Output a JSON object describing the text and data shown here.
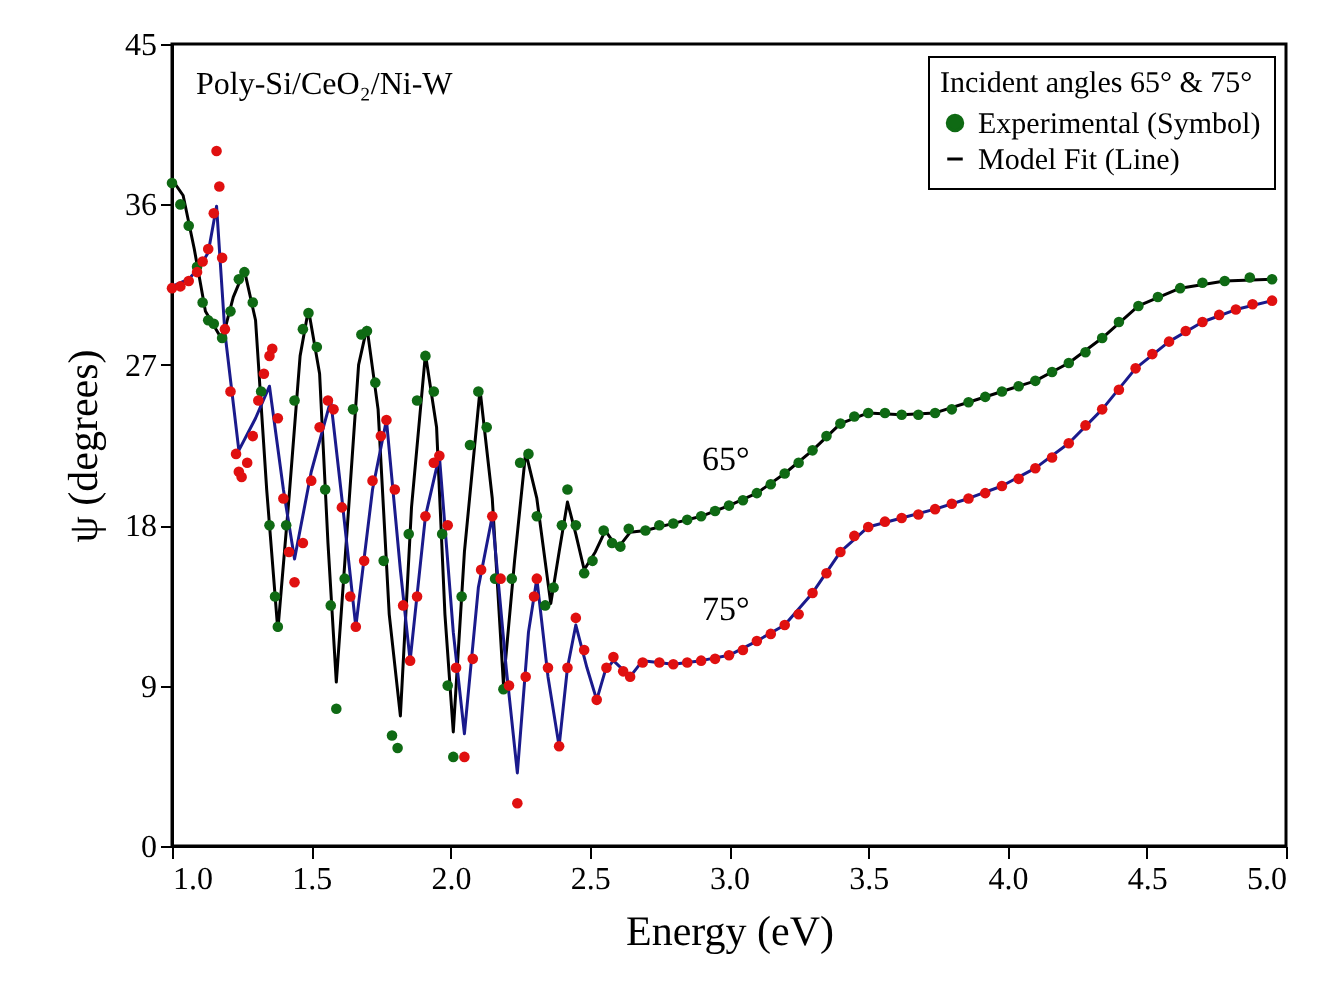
{
  "chart_data": {
    "type": "line",
    "xlabel": "Energy (eV)",
    "ylabel": "ψ (degrees)",
    "legend_title": "Incident angles 65° & 75°",
    "xlim": [
      1.0,
      5.0
    ],
    "ylim": [
      0,
      45
    ],
    "xticks": [
      {
        "value": 1,
        "label": "1.0"
      },
      1.5,
      {
        "value": 2,
        "label": "2.0"
      },
      2.5,
      {
        "value": 3,
        "label": "3.0"
      },
      3.5,
      {
        "value": 4,
        "label": "4.0"
      },
      4.5,
      {
        "value": 5,
        "label": "5.0"
      }
    ],
    "yticks": [
      0,
      9,
      18,
      27,
      36,
      45
    ],
    "grid": false,
    "legend": "top right",
    "annotations": [
      "Poly-Si/CeO₂/Ni-W",
      "65°",
      "75°"
    ],
    "series": [
      {
        "name": "Experimental (Symbol)",
        "type": "scatter",
        "color": "#0f6a14",
        "x": [
          1.0,
          1.03,
          1.06,
          1.09,
          1.11,
          1.13,
          1.15,
          1.18,
          1.21,
          1.24,
          1.26,
          1.29,
          1.32,
          1.35,
          1.37,
          1.38,
          1.41,
          1.44,
          1.47,
          1.49,
          1.52,
          1.55,
          1.57,
          1.59,
          1.62,
          1.65,
          1.68,
          1.7,
          1.73,
          1.76,
          1.79,
          1.81,
          1.85,
          1.88,
          1.91,
          1.94,
          1.97,
          1.99,
          2.01,
          2.04,
          2.07,
          2.1,
          2.13,
          2.16,
          2.19,
          2.22,
          2.25,
          2.28,
          2.31,
          2.34,
          2.37,
          2.4,
          2.42,
          2.45,
          2.48,
          2.51,
          2.55,
          2.58,
          2.61,
          2.64,
          2.7,
          2.75,
          2.8,
          2.85,
          2.9,
          2.95,
          3.0,
          3.05,
          3.1,
          3.15,
          3.2,
          3.25,
          3.3,
          3.35,
          3.4,
          3.45,
          3.5,
          3.56,
          3.62,
          3.68,
          3.74,
          3.8,
          3.86,
          3.92,
          3.98,
          4.04,
          4.1,
          4.16,
          4.22,
          4.28,
          4.34,
          4.4,
          4.47,
          4.54,
          4.62,
          4.7,
          4.78,
          4.87,
          4.95
        ],
        "values": [
          37.2,
          36.0,
          34.8,
          32.5,
          30.5,
          29.5,
          29.3,
          28.5,
          30.0,
          31.8,
          32.2,
          30.5,
          25.5,
          18.0,
          14.0,
          12.3,
          18.0,
          25.0,
          29.0,
          29.9,
          28.0,
          20.0,
          13.5,
          7.7,
          15.0,
          24.5,
          28.7,
          28.9,
          26.0,
          16.0,
          6.2,
          5.5,
          17.5,
          25.0,
          27.5,
          25.5,
          17.5,
          9.0,
          5.0,
          14.0,
          22.5,
          25.5,
          23.5,
          15.0,
          8.8,
          15.0,
          21.5,
          22.0,
          18.5,
          13.5,
          14.5,
          18.0,
          20.0,
          18.0,
          15.3,
          16.0,
          17.7,
          17.0,
          16.8,
          17.8,
          17.7,
          18.0,
          18.1,
          18.3,
          18.5,
          18.8,
          19.1,
          19.4,
          19.8,
          20.3,
          20.9,
          21.5,
          22.2,
          23.0,
          23.7,
          24.1,
          24.3,
          24.3,
          24.2,
          24.2,
          24.3,
          24.5,
          24.9,
          25.2,
          25.5,
          25.8,
          26.1,
          26.6,
          27.1,
          27.7,
          28.5,
          29.4,
          30.3,
          30.8,
          31.3,
          31.6,
          31.7,
          31.9,
          31.8
        ]
      },
      {
        "name": "Model Fit (Line)",
        "type": "line",
        "color": "#000000",
        "x": [
          1.0,
          1.04,
          1.08,
          1.12,
          1.18,
          1.22,
          1.26,
          1.3,
          1.34,
          1.38,
          1.42,
          1.46,
          1.49,
          1.53,
          1.56,
          1.59,
          1.63,
          1.67,
          1.7,
          1.74,
          1.78,
          1.82,
          1.86,
          1.91,
          1.95,
          1.98,
          2.01,
          2.05,
          2.106,
          2.15,
          2.19,
          2.23,
          2.27,
          2.31,
          2.36,
          2.39,
          2.42,
          2.45,
          2.48,
          2.52,
          2.556,
          2.6,
          2.645,
          2.7,
          2.8,
          2.9,
          3.0,
          3.1,
          3.2,
          3.3,
          3.4,
          3.5,
          3.62,
          3.74,
          3.86,
          3.98,
          4.1,
          4.22,
          4.34,
          4.47,
          4.62,
          4.78,
          4.95
        ],
        "values": [
          37.4,
          36.5,
          33.5,
          30.0,
          28.4,
          30.8,
          32.3,
          29.5,
          20.0,
          12.1,
          19.5,
          27.5,
          30.1,
          26.5,
          17.0,
          9.2,
          18.0,
          27.0,
          29.1,
          24.5,
          13.0,
          7.3,
          19.0,
          27.6,
          23.5,
          13.0,
          6.4,
          16.5,
          25.6,
          19.5,
          9.1,
          16.0,
          22.1,
          19.5,
          13.6,
          16.5,
          19.3,
          17.5,
          15.5,
          16.5,
          17.7,
          16.7,
          17.6,
          17.7,
          18.1,
          18.5,
          19.1,
          19.8,
          20.9,
          22.2,
          23.7,
          24.3,
          24.2,
          24.3,
          24.9,
          25.5,
          26.1,
          27.1,
          28.5,
          30.3,
          31.3,
          31.7,
          31.8
        ]
      },
      {
        "type": "scatter",
        "color": "#e01010",
        "x": [
          1.0,
          1.03,
          1.06,
          1.09,
          1.11,
          1.13,
          1.15,
          1.16,
          1.17,
          1.18,
          1.19,
          1.21,
          1.23,
          1.24,
          1.25,
          1.27,
          1.29,
          1.31,
          1.33,
          1.35,
          1.36,
          1.38,
          1.4,
          1.42,
          1.44,
          1.47,
          1.5,
          1.53,
          1.56,
          1.58,
          1.61,
          1.64,
          1.66,
          1.69,
          1.72,
          1.75,
          1.77,
          1.8,
          1.83,
          1.855,
          1.88,
          1.91,
          1.94,
          1.96,
          1.99,
          2.02,
          2.05,
          2.08,
          2.11,
          2.15,
          2.18,
          2.21,
          2.24,
          2.27,
          2.3,
          2.31,
          2.35,
          2.39,
          2.42,
          2.45,
          2.48,
          2.525,
          2.56,
          2.585,
          2.62,
          2.645,
          2.69,
          2.75,
          2.8,
          2.85,
          2.9,
          2.95,
          3.0,
          3.05,
          3.1,
          3.15,
          3.2,
          3.25,
          3.3,
          3.35,
          3.4,
          3.45,
          3.5,
          3.56,
          3.62,
          3.68,
          3.74,
          3.8,
          3.86,
          3.92,
          3.98,
          4.04,
          4.1,
          4.16,
          4.22,
          4.28,
          4.34,
          4.4,
          4.46,
          4.52,
          4.58,
          4.64,
          4.7,
          4.76,
          4.82,
          4.88,
          4.95
        ],
        "values": [
          31.3,
          31.4,
          31.7,
          32.2,
          32.8,
          33.5,
          35.5,
          39.0,
          37.0,
          33.0,
          29.0,
          25.5,
          22.0,
          21.0,
          20.7,
          21.5,
          23.0,
          25.0,
          26.5,
          27.5,
          27.9,
          24.0,
          19.5,
          16.5,
          14.8,
          17.0,
          20.5,
          23.5,
          25.0,
          24.5,
          19.0,
          14.0,
          12.3,
          16.0,
          20.5,
          23.0,
          23.9,
          20.0,
          13.5,
          10.4,
          14.0,
          18.5,
          21.5,
          21.9,
          18.0,
          10.0,
          5.0,
          10.5,
          15.5,
          18.5,
          15.0,
          9.0,
          2.4,
          9.5,
          14.0,
          15.0,
          10.0,
          5.6,
          10.0,
          12.8,
          11.0,
          8.2,
          10.0,
          10.6,
          9.8,
          9.5,
          10.3,
          10.3,
          10.2,
          10.3,
          10.4,
          10.5,
          10.7,
          11.0,
          11.5,
          11.9,
          12.4,
          13.0,
          14.2,
          15.3,
          16.5,
          17.4,
          17.9,
          18.2,
          18.4,
          18.6,
          18.9,
          19.2,
          19.5,
          19.8,
          20.2,
          20.6,
          21.2,
          21.8,
          22.6,
          23.6,
          24.5,
          25.6,
          26.8,
          27.6,
          28.3,
          28.9,
          29.4,
          29.8,
          30.1,
          30.4,
          30.6
        ]
      },
      {
        "type": "line",
        "color": "#1a1a8c",
        "x": [
          1.0,
          1.06,
          1.1,
          1.13,
          1.16,
          1.19,
          1.24,
          1.3,
          1.35,
          1.4,
          1.44,
          1.5,
          1.57,
          1.61,
          1.66,
          1.72,
          1.77,
          1.82,
          1.855,
          1.91,
          1.96,
          2.01,
          2.05,
          2.1,
          2.15,
          2.2,
          2.24,
          2.28,
          2.31,
          2.35,
          2.39,
          2.42,
          2.45,
          2.49,
          2.525,
          2.555,
          2.585,
          2.645,
          2.69,
          2.8,
          2.9,
          3.0,
          3.1,
          3.2,
          3.3,
          3.4,
          3.5,
          3.62,
          3.74,
          3.86,
          3.98,
          4.1,
          4.22,
          4.34,
          4.46,
          4.58,
          4.7,
          4.82,
          4.95
        ],
        "values": [
          31.4,
          31.8,
          32.5,
          33.3,
          35.9,
          28.8,
          22.2,
          24.0,
          25.8,
          20.0,
          16.1,
          21.0,
          25.0,
          19.5,
          12.3,
          20.0,
          23.9,
          15.5,
          10.4,
          18.5,
          21.9,
          12.0,
          6.3,
          14.5,
          18.5,
          10.0,
          4.1,
          12.0,
          15.0,
          9.5,
          5.6,
          10.0,
          12.4,
          10.0,
          8.2,
          9.8,
          10.4,
          9.5,
          10.4,
          10.2,
          10.4,
          10.7,
          11.5,
          12.4,
          14.2,
          16.5,
          17.9,
          18.4,
          18.9,
          19.5,
          20.2,
          21.2,
          22.6,
          24.5,
          26.8,
          28.3,
          29.4,
          30.1,
          30.6
        ]
      }
    ]
  }
}
